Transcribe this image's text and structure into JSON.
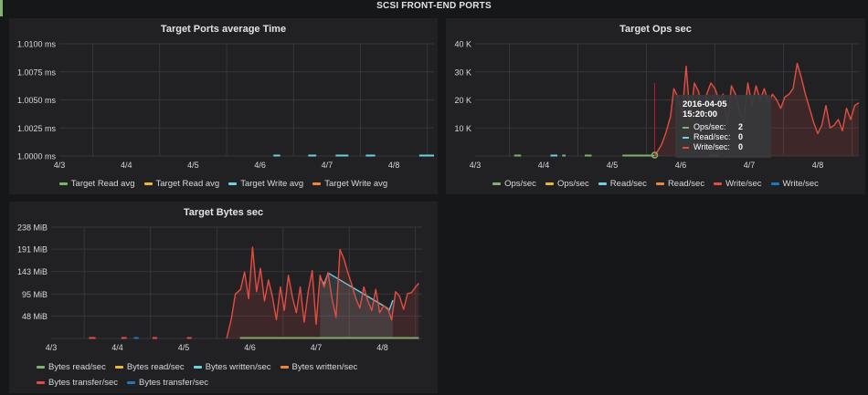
{
  "dashboard": {
    "row_title": "SCSI FRONT-END PORTS"
  },
  "colors": {
    "background": "#161719",
    "panel": "#212124",
    "grid": "#3a3a3d",
    "green": "#7eb26d",
    "yellow": "#eab839",
    "cyan": "#6ed0e0",
    "orange": "#ef843c",
    "red": "#e24d42",
    "blue": "#1f78c1"
  },
  "tooltip": {
    "time": "2016-04-05 15:20:00",
    "rows": [
      {
        "label": "Ops/sec:",
        "value": "2",
        "color": "#7eb26d"
      },
      {
        "label": "Read/sec:",
        "value": "0",
        "color": "#6ed0e0"
      },
      {
        "label": "Write/sec:",
        "value": "0",
        "color": "#e24d42"
      }
    ]
  },
  "chart_data": [
    {
      "id": "time",
      "type": "line",
      "title": "Target Ports average Time",
      "x_ticks": [
        "4/3",
        "4/4",
        "4/5",
        "4/6",
        "4/7",
        "4/8"
      ],
      "y_ticks": [
        "1.0000 ms",
        "1.0025 ms",
        "1.0050 ms",
        "1.0075 ms",
        "1.0100 ms"
      ],
      "ylim": [
        1.0,
        1.01
      ],
      "xlim": [
        0,
        5.6
      ],
      "grid": true,
      "series": [
        {
          "name": "Target Read avg",
          "color": "#7eb26d",
          "segments": []
        },
        {
          "name": "Target Read avg",
          "color": "#eab839",
          "segments": []
        },
        {
          "name": "Target Write avg",
          "color": "#6ed0e0",
          "segments": [
            [
              3.2,
              3.3
            ],
            [
              3.72,
              3.84
            ],
            [
              4.13,
              4.32
            ],
            [
              4.58,
              4.72
            ],
            [
              5.38,
              5.6
            ]
          ],
          "y": 1.0
        },
        {
          "name": "Target Write avg",
          "color": "#ef843c",
          "segments": []
        }
      ]
    },
    {
      "id": "ops",
      "type": "line",
      "title": "Target Ops sec",
      "x_ticks": [
        "4/3",
        "4/4",
        "4/5",
        "4/6",
        "4/7",
        "4/8"
      ],
      "y_ticks": [
        "",
        "10 K",
        "20 K",
        "30 K",
        "40 K"
      ],
      "y_tick_values": [
        0,
        10000,
        20000,
        30000,
        40000
      ],
      "ylim": [
        0,
        40000
      ],
      "xlim": [
        0,
        5.6
      ],
      "grid": true,
      "cursor_x": 2.62,
      "point": {
        "x": 2.62,
        "y": 0
      },
      "flat_segments": [
        {
          "color": "#7eb26d",
          "ranges": [
            [
              0.57,
              0.67
            ],
            [
              1.27,
              1.32
            ],
            [
              1.6,
              1.7
            ],
            [
              2.15,
              2.62
            ]
          ]
        },
        {
          "color": "#6ed0e0",
          "ranges": [
            [
              1.1,
              1.2
            ],
            [
              3.42,
              3.56
            ]
          ]
        }
      ],
      "series": [
        {
          "name": "Ops/sec",
          "color": "#7eb26d"
        },
        {
          "name": "Ops/sec",
          "color": "#eab839"
        },
        {
          "name": "Read/sec",
          "color": "#6ed0e0"
        },
        {
          "name": "Read/sec",
          "color": "#ef843c"
        },
        {
          "name": "Write/sec",
          "color": "#e24d42",
          "x": [
            2.62,
            2.72,
            2.78,
            2.85,
            2.9,
            2.96,
            3.02,
            3.08,
            3.14,
            3.2,
            3.26,
            3.32,
            3.38,
            3.44,
            3.5,
            3.56,
            3.62,
            3.68,
            3.74,
            3.8,
            3.86,
            3.92,
            3.98,
            4.04,
            4.1,
            4.16,
            4.22,
            4.28,
            4.34,
            4.4,
            4.46,
            4.52,
            4.58,
            4.64,
            4.7,
            4.76,
            4.82,
            4.88,
            4.94,
            5.0,
            5.06,
            5.12,
            5.18,
            5.24,
            5.3,
            5.36,
            5.42,
            5.48,
            5.54,
            5.6
          ],
          "y": [
            0,
            4000,
            8000,
            14000,
            24000,
            21000,
            15000,
            32000,
            13000,
            26000,
            23000,
            15000,
            22000,
            26000,
            24000,
            20000,
            22000,
            11000,
            25000,
            22000,
            16000,
            12000,
            26000,
            18000,
            25000,
            20000,
            24000,
            19000,
            22000,
            20000,
            17000,
            21000,
            22000,
            24000,
            33000,
            28000,
            22000,
            17000,
            12000,
            8000,
            11000,
            18000,
            10000,
            11000,
            13000,
            9000,
            17000,
            13000,
            18000,
            19000
          ]
        },
        {
          "name": "Write/sec",
          "color": "#1f78c1"
        }
      ]
    },
    {
      "id": "bytes",
      "type": "line",
      "title": "Target Bytes sec",
      "x_ticks": [
        "4/3",
        "4/4",
        "4/5",
        "4/6",
        "4/7",
        "4/8"
      ],
      "y_ticks": [
        "",
        "48 MiB",
        "95 MiB",
        "143 MiB",
        "191 MiB",
        "238 MiB"
      ],
      "y_tick_values": [
        0,
        48,
        95,
        143,
        191,
        238
      ],
      "ylim": [
        0,
        238
      ],
      "xlim": [
        0,
        5.6
      ],
      "grid": true,
      "flat_segments": [
        {
          "color": "#e24d42",
          "ranges": [
            [
              0.57,
              0.67
            ],
            [
              1.06,
              1.14
            ],
            [
              1.53,
              1.6
            ],
            [
              2.05,
              2.12
            ]
          ]
        },
        {
          "color": "#1f78c1",
          "ranges": [
            [
              1.25,
              1.32
            ]
          ]
        },
        {
          "color": "#7eb26d",
          "ranges": [
            [
              2.85,
              5.55
            ]
          ]
        }
      ],
      "series": [
        {
          "name": "Bytes read/sec",
          "color": "#7eb26d"
        },
        {
          "name": "Bytes read/sec",
          "color": "#eab839"
        },
        {
          "name": "Bytes written/sec",
          "color": "#6ed0e0",
          "x": [
            4.06,
            4.12,
            4.18,
            5.04,
            5.1,
            5.16
          ],
          "y": [
            130,
            116,
            140,
            68,
            60,
            82
          ]
        },
        {
          "name": "Bytes written/sec",
          "color": "#ef843c"
        },
        {
          "name": "Bytes transfer/sec",
          "color": "#e24d42",
          "x": [
            2.65,
            2.72,
            2.78,
            2.86,
            2.92,
            2.98,
            3.04,
            3.1,
            3.16,
            3.22,
            3.28,
            3.34,
            3.4,
            3.46,
            3.52,
            3.58,
            3.64,
            3.7,
            3.76,
            3.82,
            3.88,
            3.94,
            4.0,
            4.06,
            4.12,
            4.18,
            4.24,
            4.3,
            4.36,
            4.42,
            4.48,
            4.54,
            4.6,
            4.66,
            4.72,
            4.78,
            4.84,
            4.9,
            4.96,
            5.02,
            5.08,
            5.14,
            5.2,
            5.26,
            5.32,
            5.38,
            5.44,
            5.5,
            5.55
          ],
          "y": [
            0,
            42,
            95,
            105,
            142,
            85,
            195,
            100,
            150,
            80,
            125,
            90,
            40,
            110,
            60,
            135,
            90,
            55,
            110,
            35,
            100,
            145,
            30,
            135,
            110,
            140,
            85,
            45,
            190,
            170,
            140,
            115,
            85,
            65,
            110,
            80,
            60,
            105,
            55,
            70,
            65,
            40,
            100,
            90,
            62,
            96,
            98,
            110,
            118
          ]
        },
        {
          "name": "Bytes transfer/sec",
          "color": "#1f78c1"
        }
      ]
    }
  ]
}
